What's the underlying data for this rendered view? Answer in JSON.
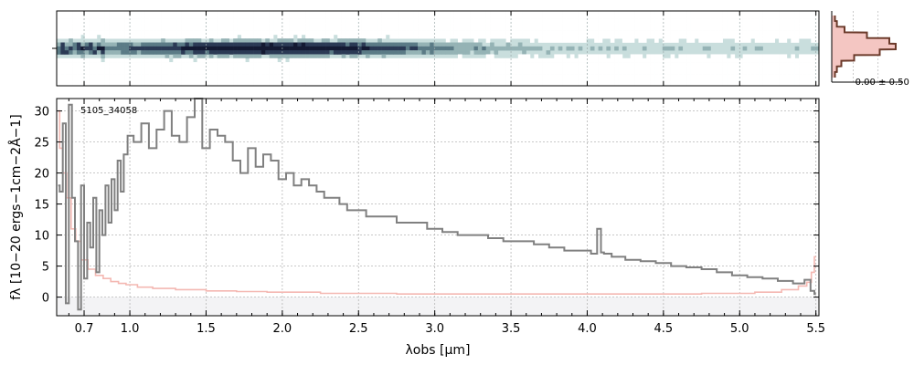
{
  "chart_data": [
    {
      "type": "heatmap",
      "panel": "2d-spectrum",
      "colormap": [
        "#ffffff",
        "#c9dedd",
        "#95b3b5",
        "#5b7b86",
        "#2b3a55",
        "#141a33"
      ],
      "background": "#c9dedd",
      "trace_center": "0",
      "grid": true
    },
    {
      "type": "line",
      "panel": "spatial-profile",
      "annotation": "-0.00 ± 0.50",
      "profile": [
        0.05,
        0.08,
        0.2,
        0.55,
        0.9,
        1.0,
        0.75,
        0.35,
        0.15,
        0.08,
        0.05
      ],
      "colors": {
        "line": "#6b3a2a",
        "fill": "#f4c6c2"
      }
    },
    {
      "type": "line",
      "panel": "1d-spectrum",
      "label": "5105_34058",
      "xlabel": "λobs [μm]",
      "ylabel": "fλ [10−20 ergs−1cm−2Å−1]",
      "xticks": [
        "0.7",
        "1.0",
        "1.5",
        "2.0",
        "2.5",
        "3.0",
        "3.5",
        "4.0",
        "4.5",
        "5.0",
        "5.5"
      ],
      "xtick_values": [
        0.7,
        1.0,
        1.5,
        2.0,
        2.5,
        3.0,
        3.5,
        4.0,
        4.5,
        5.0,
        5.5
      ],
      "yticks": [
        "0",
        "5",
        "10",
        "15",
        "20",
        "25",
        "30"
      ],
      "ytick_values": [
        0,
        5,
        10,
        15,
        20,
        25,
        30
      ],
      "xlim": [
        0.52,
        5.52
      ],
      "ylim": [
        -3,
        32
      ],
      "grid": true,
      "colors": {
        "flux": "#808080",
        "error": "#f4b8b2"
      },
      "series": [
        {
          "role": "flux",
          "x": [
            0.53,
            0.55,
            0.57,
            0.59,
            0.61,
            0.63,
            0.65,
            0.67,
            0.69,
            0.71,
            0.73,
            0.75,
            0.77,
            0.79,
            0.81,
            0.83,
            0.85,
            0.87,
            0.89,
            0.91,
            0.93,
            0.95,
            0.97,
            1.0,
            1.05,
            1.1,
            1.15,
            1.2,
            1.25,
            1.3,
            1.35,
            1.4,
            1.45,
            1.5,
            1.55,
            1.6,
            1.65,
            1.7,
            1.75,
            1.8,
            1.85,
            1.9,
            1.95,
            2.0,
            2.05,
            2.1,
            2.15,
            2.2,
            2.25,
            2.3,
            2.35,
            2.4,
            2.45,
            2.5,
            2.6,
            2.7,
            2.8,
            2.9,
            3.0,
            3.1,
            3.2,
            3.3,
            3.4,
            3.5,
            3.6,
            3.7,
            3.8,
            3.9,
            4.0,
            4.05,
            4.08,
            4.1,
            4.12,
            4.2,
            4.3,
            4.4,
            4.5,
            4.6,
            4.7,
            4.8,
            4.9,
            5.0,
            5.1,
            5.2,
            5.3,
            5.4,
            5.45,
            5.48,
            5.5
          ],
          "y": [
            18,
            17,
            28,
            -1,
            31,
            16,
            9,
            -2,
            18,
            3,
            12,
            8,
            16,
            4,
            14,
            10,
            18,
            12,
            19,
            14,
            22,
            17,
            23,
            26,
            25,
            28,
            24,
            27,
            30,
            26,
            25,
            29,
            32,
            24,
            27,
            26,
            25,
            22,
            20,
            24,
            21,
            23,
            22,
            19,
            20,
            18,
            19,
            18,
            17,
            16,
            16,
            15,
            14,
            14,
            13,
            13,
            12,
            12,
            11,
            10.5,
            10,
            10,
            9.5,
            9,
            9,
            8.5,
            8,
            7.5,
            7.5,
            7,
            11,
            7.2,
            7,
            6.5,
            6,
            5.8,
            5.5,
            5,
            4.8,
            4.5,
            4,
            3.5,
            3.2,
            3,
            2.6,
            2.2,
            2.8,
            1,
            0.5
          ]
        },
        {
          "role": "error",
          "x": [
            0.53,
            0.55,
            0.57,
            0.6,
            0.63,
            0.66,
            0.7,
            0.75,
            0.8,
            0.85,
            0.9,
            0.95,
            1.0,
            1.1,
            1.2,
            1.4,
            1.6,
            1.8,
            2.0,
            2.5,
            3.0,
            3.5,
            4.0,
            4.5,
            5.0,
            5.2,
            5.35,
            5.42,
            5.46,
            5.48,
            5.5
          ],
          "y": [
            30,
            24,
            20,
            16,
            11,
            9,
            6,
            4.5,
            3.5,
            3,
            2.5,
            2.2,
            2,
            1.6,
            1.4,
            1.2,
            1,
            0.9,
            0.8,
            0.6,
            0.5,
            0.5,
            0.5,
            0.5,
            0.6,
            0.8,
            1.2,
            1.8,
            2.4,
            4,
            6.5
          ]
        }
      ]
    }
  ]
}
